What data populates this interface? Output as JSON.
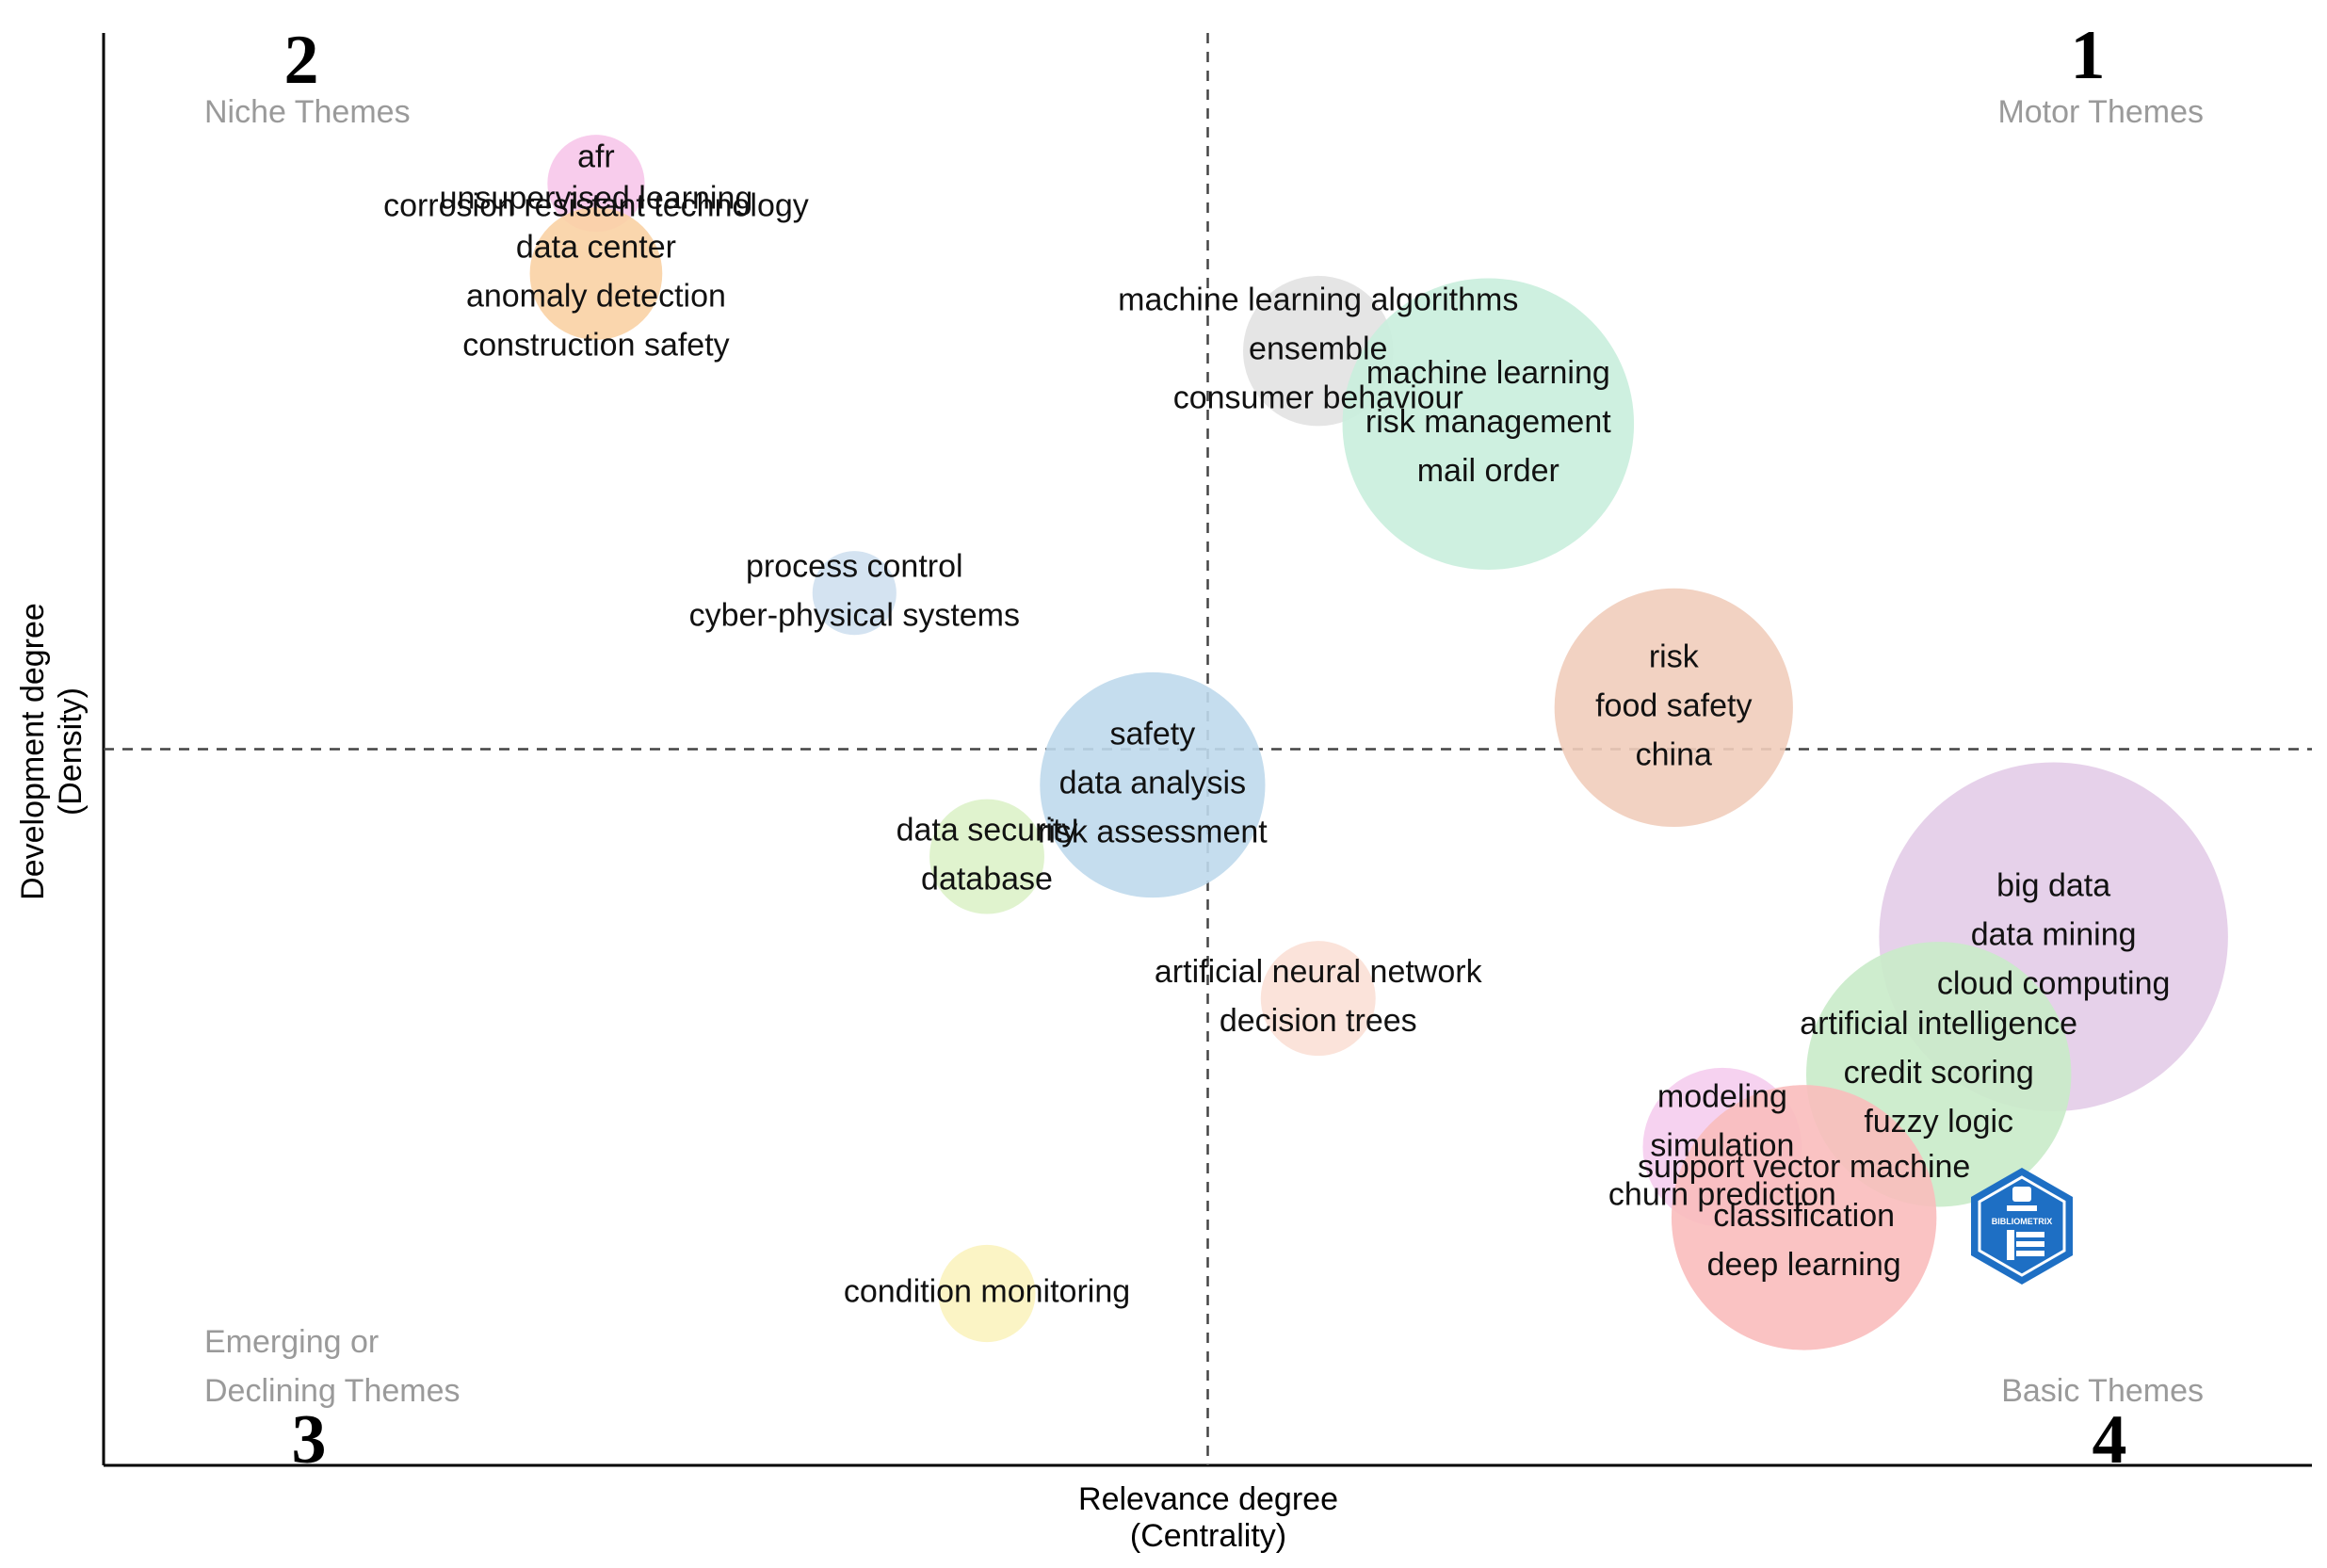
{
  "chart_data": {
    "type": "scatter",
    "subtype": "thematic-map-bubble",
    "xlabel": "Relevance degree",
    "xlabel_sub": "(Centrality)",
    "ylabel": "Development degree",
    "ylabel_sub": "(Density)",
    "xlim": [
      0,
      100
    ],
    "ylim": [
      0,
      100
    ],
    "x_divider": 50,
    "y_divider": 50,
    "grid": false,
    "quadrants": [
      {
        "number": "1",
        "name_lines": [
          "Motor Themes"
        ],
        "position": "top-right"
      },
      {
        "number": "2",
        "name_lines": [
          "Niche Themes"
        ],
        "position": "top-left"
      },
      {
        "number": "3",
        "name_lines": [
          "Emerging or",
          "Declining Themes"
        ],
        "position": "bottom-left"
      },
      {
        "number": "4",
        "name_lines": [
          "Basic Themes"
        ],
        "position": "bottom-right"
      }
    ],
    "clusters": [
      {
        "x": 22.3,
        "y": 89.5,
        "size": 2.2,
        "color": "#f7c6ea",
        "labels": [
          "afr",
          "corrosion resistant technology"
        ]
      },
      {
        "x": 22.3,
        "y": 83.2,
        "size": 3.0,
        "color": "#f9d2a4",
        "labels": [
          "unsupervised learning",
          "data center",
          "anomaly detection",
          "construction safety"
        ]
      },
      {
        "x": 55.0,
        "y": 77.8,
        "size": 3.4,
        "color": "#e2e2e2",
        "labels": [
          "machine learning algorithms",
          "ensemble",
          "consumer behaviour"
        ]
      },
      {
        "x": 62.7,
        "y": 72.7,
        "size": 6.6,
        "color": "#c9eedd",
        "labels": [
          "machine learning",
          "risk management",
          "mail order"
        ]
      },
      {
        "x": 34.0,
        "y": 60.9,
        "size": 1.9,
        "color": "#cfe0f0",
        "labels": [
          "process control",
          "cyber-physical systems"
        ]
      },
      {
        "x": 71.1,
        "y": 52.9,
        "size": 5.4,
        "color": "#f1cdbb",
        "labels": [
          "risk",
          "food safety",
          "china"
        ]
      },
      {
        "x": 47.5,
        "y": 47.5,
        "size": 5.1,
        "color": "#bfd9ec",
        "labels": [
          "safety",
          "data analysis",
          "risk assessment"
        ]
      },
      {
        "x": 40.0,
        "y": 42.5,
        "size": 2.6,
        "color": "#ddf2c9",
        "labels": [
          "data security",
          "database"
        ]
      },
      {
        "x": 55.0,
        "y": 32.6,
        "size": 2.6,
        "color": "#fbe0d6",
        "labels": [
          "artificial neural network",
          "decision trees"
        ]
      },
      {
        "x": 88.3,
        "y": 36.9,
        "size": 7.9,
        "color": "#e3cce8",
        "labels": [
          "big data",
          "data mining",
          "cloud computing"
        ]
      },
      {
        "x": 83.1,
        "y": 27.3,
        "size": 6.0,
        "color": "#c9ebc9",
        "labels": [
          "artificial intelligence",
          "credit scoring",
          "fuzzy logic"
        ]
      },
      {
        "x": 73.3,
        "y": 22.2,
        "size": 3.6,
        "color": "#f5cdee",
        "labels": [
          "modeling",
          "simulation",
          "churn prediction"
        ]
      },
      {
        "x": 77.0,
        "y": 17.3,
        "size": 6.0,
        "color": "#f9bcbc",
        "labels": [
          "support vector machine",
          "classification",
          "deep learning"
        ]
      },
      {
        "x": 40.0,
        "y": 12.0,
        "size": 2.2,
        "color": "#fbf3bf",
        "labels": [
          "condition monitoring"
        ]
      }
    ]
  },
  "logo": {
    "text": "BIBLIOMETRIX",
    "color": "#1e6fc4"
  }
}
